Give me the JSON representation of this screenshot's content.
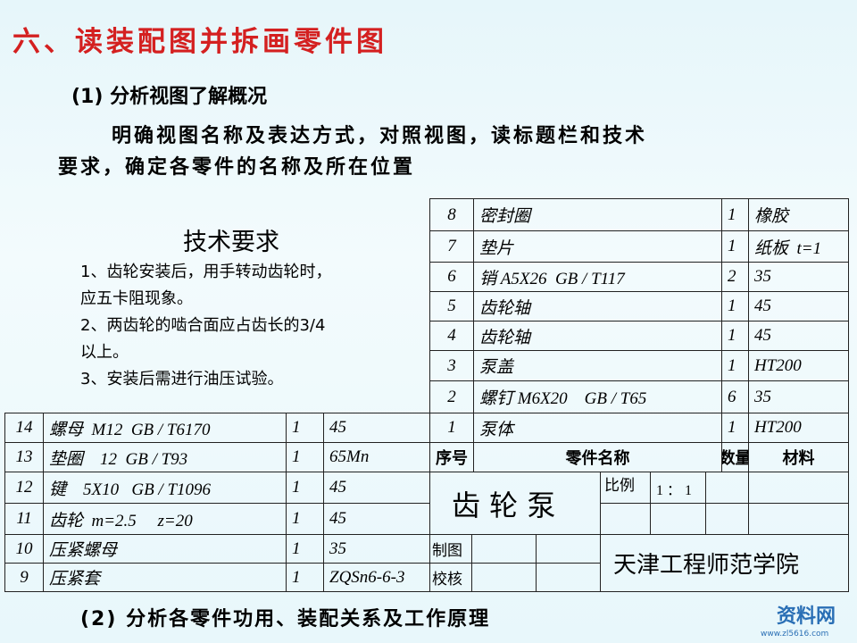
{
  "header": {
    "title": "六、读装配图并拆画零件图"
  },
  "section1": {
    "heading": "(1) 分析视图了解概况",
    "lines": [
      "明确视图名称及表达方式，对照视图，读标题栏和技术",
      "要求，确定各零件的名称及所在位置"
    ]
  },
  "tech": {
    "title": "技术要求",
    "lines": [
      "1、齿轮安装后，用手转动齿轮时，",
      "应五卡阻现象。",
      "2、两齿轮的啮合面应占齿长的3/4",
      "以上。",
      "3、安装后需进行油压试验。"
    ]
  },
  "right_table": {
    "rows": [
      [
        "8",
        "密封圈",
        "1",
        "橡胶"
      ],
      [
        "7",
        "垫片",
        "1",
        "纸板  t=1"
      ],
      [
        "6",
        "销 A5X26  GB / T117",
        "2",
        "35"
      ],
      [
        "5",
        "齿轮轴",
        "1",
        "45"
      ],
      [
        "4",
        "齿轮轴",
        "1",
        "45"
      ],
      [
        "3",
        "泵盖",
        "1",
        "HT200"
      ],
      [
        "2",
        "螺钉 M6X20    GB / T65",
        "6",
        "35"
      ],
      [
        "1",
        "泵体",
        "1",
        "HT200"
      ]
    ],
    "header": [
      "序号",
      "零件名称",
      "数量",
      "材料"
    ]
  },
  "left_table": {
    "rows": [
      [
        "14",
        "螺母  M12  GB / T6170",
        "1",
        "45"
      ],
      [
        "13",
        "垫圈    12  GB / T93",
        "1",
        "65Mn"
      ],
      [
        "12",
        "键    5X10   GB / T1096",
        "1",
        "45"
      ],
      [
        "11",
        "齿轮  m=2.5     z=20",
        "1",
        "45"
      ],
      [
        "10",
        "压紧螺母",
        "1",
        "35"
      ],
      [
        "9",
        "压紧套",
        "1",
        "ZQSn6-6-3"
      ]
    ]
  },
  "title_block": {
    "name": "齿 轮 泵",
    "scale_label": "比例",
    "scale": "1 ： 1",
    "drawn": "制图",
    "checked": "校核",
    "org": "天津工程师范学院"
  },
  "section2": {
    "heading": "(2) 分析各零件功用、装配关系及工作原理"
  },
  "watermark": {
    "name": "资料网",
    "url": "www.zl5616.com"
  }
}
